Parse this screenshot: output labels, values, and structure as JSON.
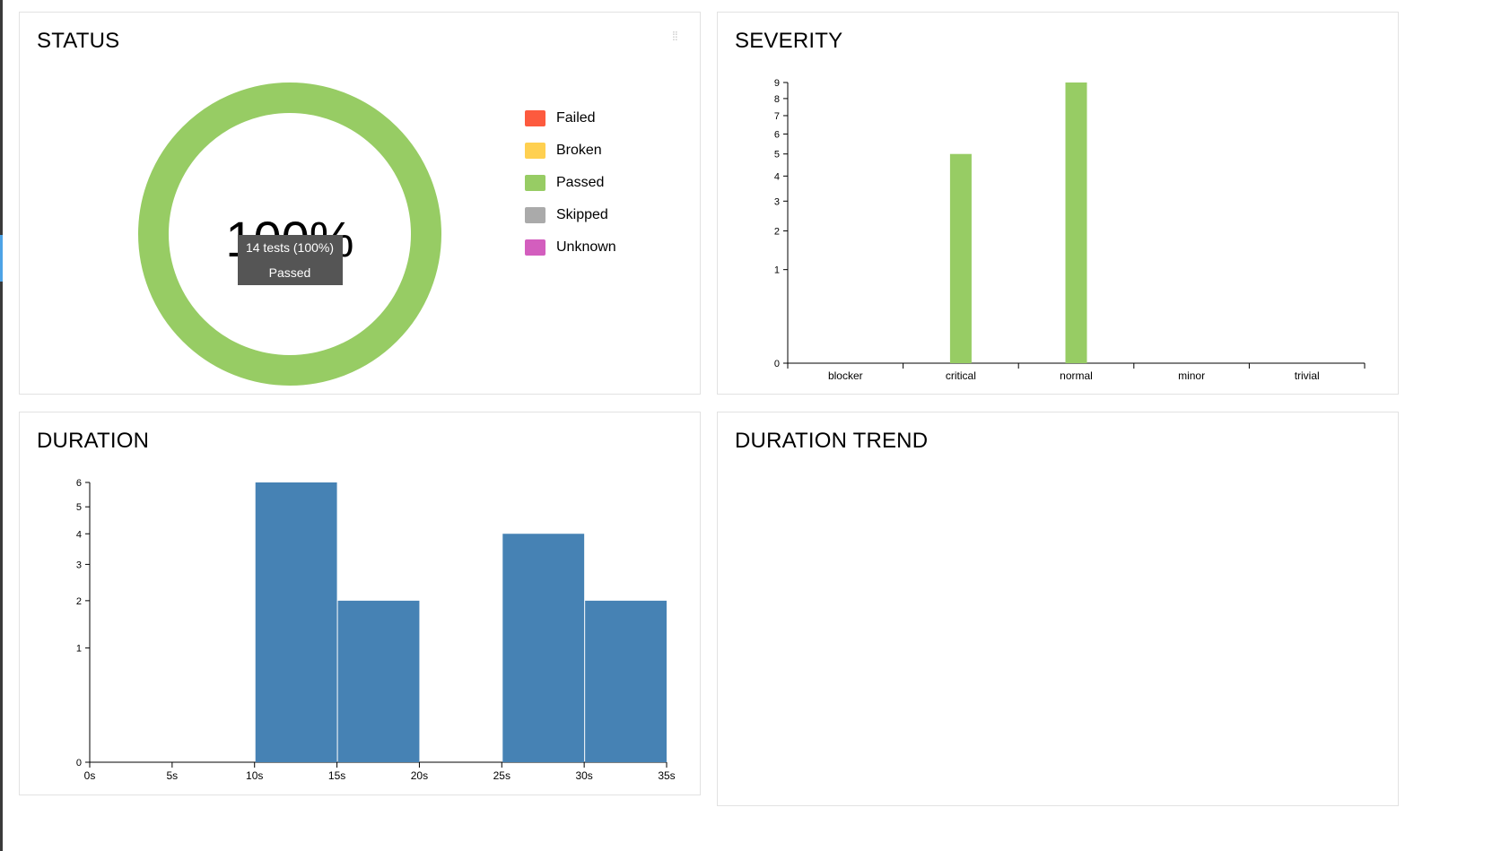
{
  "status": {
    "title": "STATUS",
    "center_percent": "100%",
    "tooltip": {
      "line1": "14 tests (100%)",
      "line2": "Passed"
    },
    "legend": [
      {
        "label": "Failed",
        "color": "#fd5a3e"
      },
      {
        "label": "Broken",
        "color": "#ffd050"
      },
      {
        "label": "Passed",
        "color": "#97cc64"
      },
      {
        "label": "Skipped",
        "color": "#aaaaaa"
      },
      {
        "label": "Unknown",
        "color": "#d35ebe"
      }
    ],
    "drag_icon": "grip-dots-icon",
    "ring_color": "#97cc64"
  },
  "severity": {
    "title": "SEVERITY",
    "chart_data": {
      "type": "bar",
      "scale": "sqrt",
      "categories": [
        "blocker",
        "critical",
        "normal",
        "minor",
        "trivial"
      ],
      "values": [
        0,
        5,
        9,
        0,
        0
      ],
      "yticks": [
        0,
        1,
        2,
        3,
        4,
        5,
        6,
        7,
        8,
        9
      ],
      "ylim": [
        0,
        9
      ],
      "bar_color": "#97cc64"
    }
  },
  "duration": {
    "title": "DURATION",
    "chart_data": {
      "type": "bar",
      "scale": "sqrt",
      "bins": [
        {
          "from": 10,
          "to": 15,
          "value": 6
        },
        {
          "from": 15,
          "to": 20,
          "value": 2
        },
        {
          "from": 25,
          "to": 30,
          "value": 4
        },
        {
          "from": 30,
          "to": 35,
          "value": 2
        }
      ],
      "xticks": [
        "0s",
        "5s",
        "10s",
        "15s",
        "20s",
        "25s",
        "30s",
        "35s"
      ],
      "xlim": [
        0,
        35
      ],
      "yticks": [
        0,
        1,
        2,
        3,
        4,
        5,
        6
      ],
      "ylim": [
        0,
        6
      ],
      "bar_color": "#4682b4"
    }
  },
  "duration_trend": {
    "title": "DURATION TREND"
  }
}
